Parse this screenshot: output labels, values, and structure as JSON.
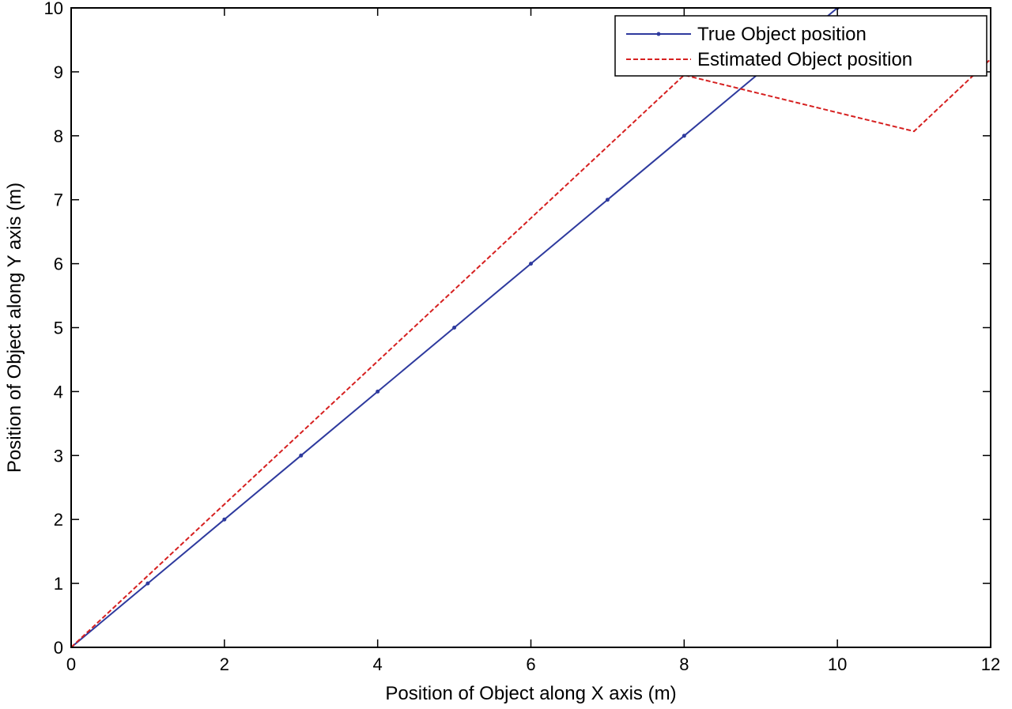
{
  "chart_data": {
    "type": "line",
    "title": "",
    "xlabel": "Position of Object along X axis (m)",
    "ylabel": "Position of Object along Y axis (m)",
    "xlim": [
      0,
      12
    ],
    "ylim": [
      0,
      10
    ],
    "x_ticks": [
      "0",
      "2",
      "4",
      "6",
      "8",
      "10",
      "12"
    ],
    "y_ticks": [
      "0",
      "1",
      "2",
      "3",
      "4",
      "5",
      "6",
      "7",
      "8",
      "9",
      "10"
    ],
    "grid": false,
    "legend_position": "top-right",
    "series": [
      {
        "name": "True Object position",
        "color": "#2e3a9e",
        "line_style": "solid",
        "marker": "dot",
        "x": [
          0,
          1,
          2,
          3,
          4,
          5,
          6,
          7,
          8,
          9,
          10
        ],
        "y": [
          0,
          1,
          2,
          3,
          4,
          5,
          6,
          7,
          8,
          9,
          10
        ]
      },
      {
        "name": "Estimated Object position",
        "color": "#d62020",
        "line_style": "dashed",
        "marker": "none",
        "x": [
          0,
          8,
          11,
          12
        ],
        "y": [
          0,
          8.95,
          8.07,
          9.2
        ]
      }
    ]
  }
}
